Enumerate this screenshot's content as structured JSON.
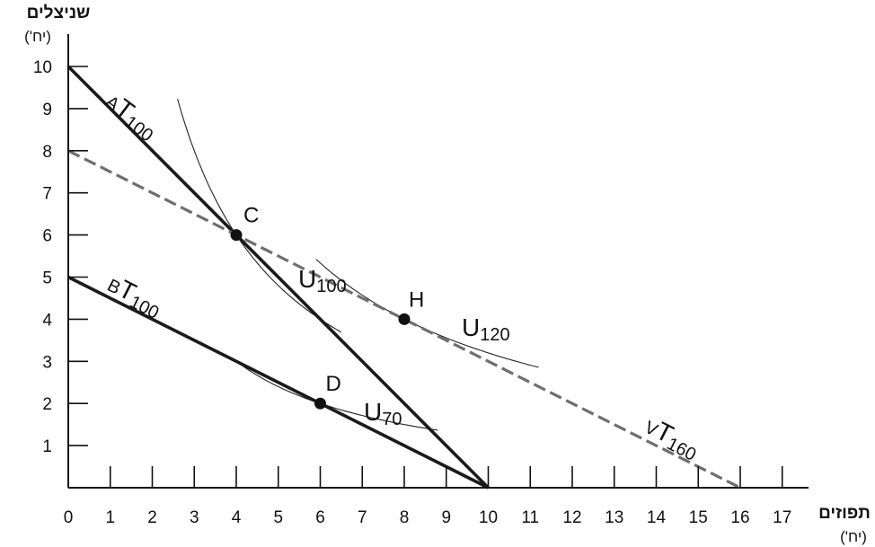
{
  "chart_data": {
    "type": "line",
    "title": "",
    "xlabel": "תפוזים",
    "xunit": "(יח')",
    "ylabel": "שניצלים",
    "yunit": "(יח')",
    "xlim": [
      0,
      17
    ],
    "ylim": [
      0,
      10
    ],
    "xticks": [
      "0",
      "1",
      "2",
      "3",
      "4",
      "5",
      "6",
      "7",
      "8",
      "9",
      "10",
      "11",
      "12",
      "13",
      "14",
      "15",
      "16",
      "17"
    ],
    "yticks": [
      "1",
      "2",
      "3",
      "4",
      "5",
      "6",
      "7",
      "8",
      "9",
      "10"
    ],
    "grid": false,
    "series": [
      {
        "name": "AT100",
        "prefix": "A",
        "base": "T",
        "sub": "100",
        "style": "solid-thick",
        "color": "#1a1a1a",
        "x": [
          0,
          10
        ],
        "y": [
          10,
          0
        ]
      },
      {
        "name": "BT100",
        "prefix": "B",
        "base": "T",
        "sub": "100",
        "style": "solid-thick",
        "color": "#1a1a1a",
        "x": [
          0,
          10
        ],
        "y": [
          5,
          0
        ]
      },
      {
        "name": "VT160",
        "prefix": "V",
        "base": "T",
        "sub": "160",
        "style": "dashed",
        "color": "#6e6e6e",
        "x": [
          0,
          16
        ],
        "y": [
          8,
          0
        ]
      }
    ],
    "indifference_curves": [
      {
        "name": "U100",
        "base": "U",
        "sub": "100",
        "k": 24,
        "xrange": [
          2.6,
          6.5
        ]
      },
      {
        "name": "U120",
        "base": "U",
        "sub": "120",
        "k": 32,
        "xrange": [
          5.9,
          11.2
        ]
      },
      {
        "name": "U70",
        "base": "U",
        "sub": "70",
        "k": 12,
        "xrange": [
          3.9,
          8.8
        ]
      }
    ],
    "points": [
      {
        "label": "C",
        "x": 4,
        "y": 6
      },
      {
        "label": "H",
        "x": 8,
        "y": 4
      },
      {
        "label": "D",
        "x": 6,
        "y": 2
      }
    ]
  }
}
